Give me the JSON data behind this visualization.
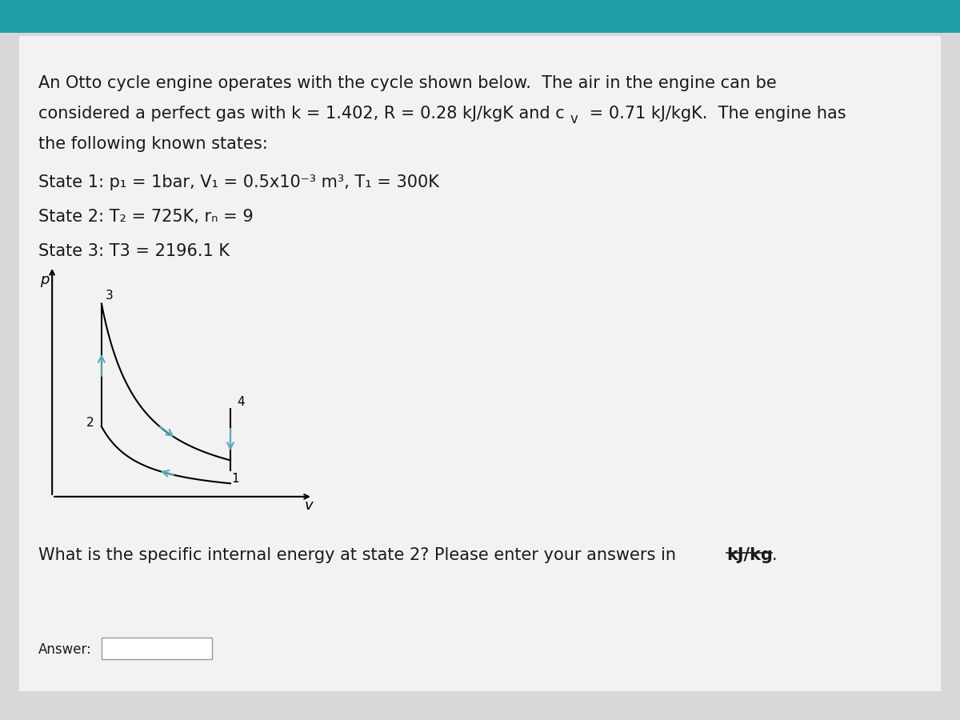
{
  "title_bar_color": "#1e9ea6",
  "background_color": "#d8d8d8",
  "content_bg": "#f2f2f2",
  "text_color": "#1a1a1a",
  "line1": "An Otto cycle engine operates with the cycle shown below.  The air in the engine can be",
  "line2a": "considered a perfect gas with k = 1.402, R = 0.28 kJ/kgK and c",
  "line2b": "v",
  "line2c": " = 0.71 kJ/kgK.  The engine has",
  "line3": "the following known states:",
  "state1": "State 1: p₁ = 1bar, V₁ = 0.5x10⁻³ m³, T₁ = 300K",
  "state2": "State 2: T₂ = 725K, rₙ = 9",
  "state3": "State 3: T3 = 2196.1 K",
  "question_pre": "What is the specific internal energy at state 2? Please enter your answers in ",
  "question_bold": "kJ/kg",
  "question_end": ".",
  "answer_label": "Answer:",
  "diagram_arrow_color": "#5ca8b8",
  "font_size_text": 15,
  "font_size_question": 15,
  "font_size_answer": 12
}
